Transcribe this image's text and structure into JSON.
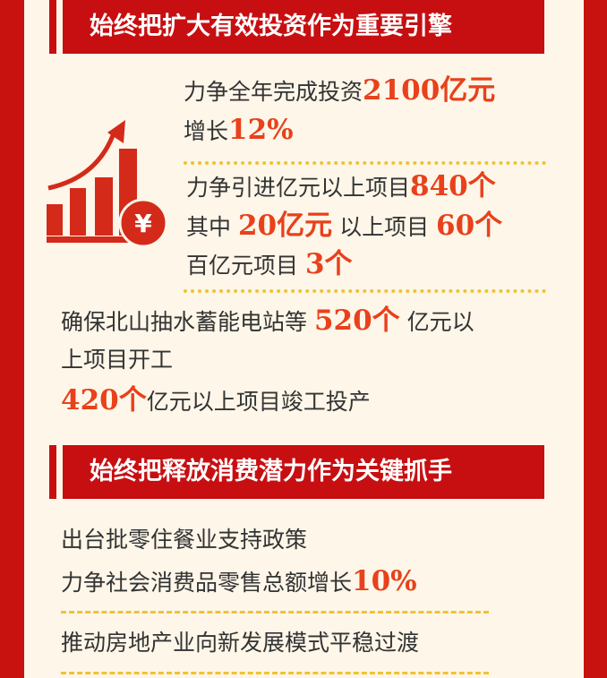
{
  "colors": {
    "accent": "#c70f12",
    "number": "#e8411b",
    "divider": "#f2c230",
    "background": "#fdf6e9"
  },
  "section1": {
    "title": "始终把扩大有效投资作为重要引擎",
    "icon": "bar-chart-growth-yuan-icon",
    "lines": [
      {
        "a": "力争全年完成投资",
        "n": "2100亿元"
      },
      {
        "a": "增长",
        "n": "12%"
      },
      {
        "a": "力争引进亿元以上项目",
        "n": "840个"
      },
      {
        "a": "其中",
        "n": "20亿元",
        "b": "以上项目",
        "n2": "60个"
      },
      {
        "a": "百亿元项目",
        "n": "3个"
      },
      {
        "a": "确保北山抽水蓄能电站等",
        "n": "520个",
        "b": "亿元以"
      },
      {
        "a": "上项目开工"
      },
      {
        "n": "420个",
        "b": "亿元以上项目竣工投产"
      }
    ]
  },
  "section2": {
    "title": "始终把释放消费潜力作为关键抓手",
    "lines": [
      {
        "a": "出台批零住餐业支持政策"
      },
      {
        "a": "力争社会消费品零售总额增长",
        "n": "10%"
      },
      {
        "a": "推动房地产业向新发展模式平稳过渡"
      }
    ]
  }
}
